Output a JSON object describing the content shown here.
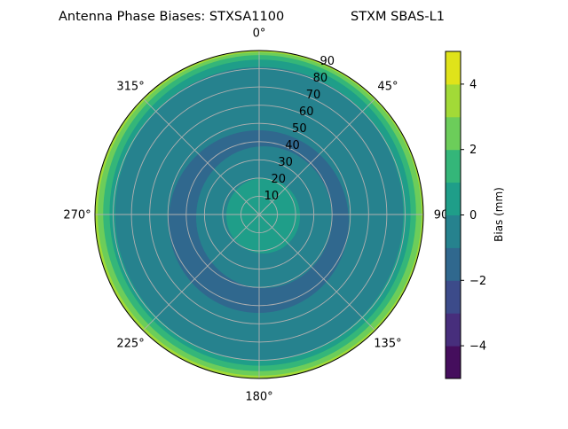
{
  "chart_data": {
    "type": "heatmap",
    "subtype": "polar filled contour",
    "title_left": "Antenna Phase Biases: STXSA1100",
    "title_right": "STXM SBAS-L1",
    "theta_direction": "clockwise",
    "theta_zero": "top",
    "theta_ticks": [
      "0°",
      "45°",
      "90",
      "135°",
      "180°",
      "225°",
      "270°",
      "315°"
    ],
    "r_ticks": [
      10,
      20,
      30,
      40,
      50,
      60,
      70,
      80,
      90
    ],
    "r_range": [
      0,
      90
    ],
    "grid": true,
    "colorbar": {
      "label": "Bias (mm)",
      "range": [
        -5,
        5
      ],
      "ticks": [
        "−4",
        "−2",
        "0",
        "2",
        "4"
      ],
      "tick_values": [
        -4,
        -2,
        0,
        2,
        4
      ],
      "levels": [
        -5,
        -4,
        -3,
        -2,
        -1,
        0,
        1,
        2,
        3,
        4,
        5
      ],
      "colors": [
        "#450e5d",
        "#472e7c",
        "#3c4b8a",
        "#30688e",
        "#26828e",
        "#1f9e89",
        "#34b679",
        "#6ccd5a",
        "#a2da37",
        "#e0e31a"
      ]
    },
    "regions": [
      {
        "level": [
          3,
          4
        ],
        "zenith_outer": {
          "north": 90,
          "east": 90,
          "south": 90,
          "west": 90
        }
      },
      {
        "level": [
          2,
          3
        ],
        "zenith_outer": {
          "north": 89,
          "east": 89,
          "south": 88.5,
          "west": 88.5
        }
      },
      {
        "level": [
          1,
          2
        ],
        "zenith_outer": {
          "north": 87.5,
          "east": 86,
          "south": 86,
          "west": 85.5
        }
      },
      {
        "level": [
          0,
          1
        ],
        "zenith_outer": {
          "north": 85,
          "east": 83,
          "south": 83,
          "west": 82
        }
      },
      {
        "level": [
          -1,
          0
        ],
        "zenith_outer": {
          "north": 81,
          "east": 79,
          "south": 80,
          "west": 79
        }
      },
      {
        "level": [
          -2,
          -1
        ],
        "zenith_outer": {
          "north": 46.2,
          "east": 49.1,
          "south": 54,
          "west": 49.6
        },
        "zenith_inner": {
          "north": 37.4,
          "east": 39.9,
          "south": 40.4,
          "west": 34.5
        }
      },
      {
        "level": [
          0,
          1
        ],
        "zenith_outer": {
          "north": 20,
          "east": 22.4,
          "south": 21.4,
          "west": 18
        }
      }
    ]
  }
}
